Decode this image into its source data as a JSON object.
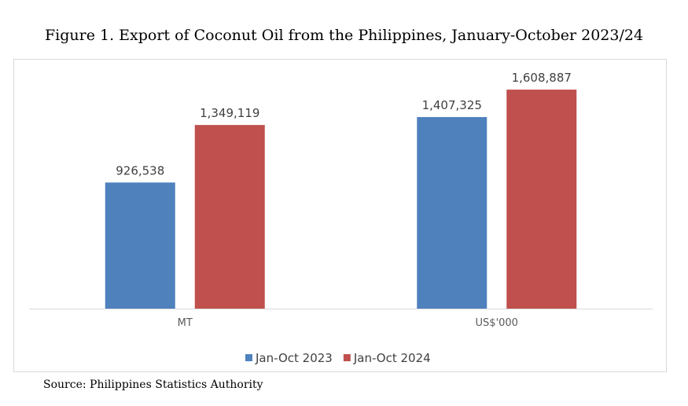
{
  "title": "Figure 1. Export of Coconut Oil from the Philippines, January-October 2023/24",
  "source": "Source: Philippines Statistics Authority",
  "chart_data": {
    "type": "bar",
    "title": "Figure 1. Export of Coconut Oil from the Philippines, January-October 2023/24",
    "categories": [
      "MT",
      "US$'000"
    ],
    "series": [
      {
        "name": "Jan-Oct 2023",
        "color": "#4F81BD",
        "values": [
          926538,
          1407325
        ],
        "labels": [
          "926,538",
          "1,407,325"
        ]
      },
      {
        "name": "Jan-Oct 2024",
        "color": "#C0504D",
        "values": [
          1349119,
          1608887
        ],
        "labels": [
          "1,349,119",
          "1,608,887"
        ]
      }
    ],
    "xlabel": "",
    "ylabel": "",
    "ylim": [
      0,
      1800000
    ],
    "grid": false,
    "legend": "bottom"
  }
}
